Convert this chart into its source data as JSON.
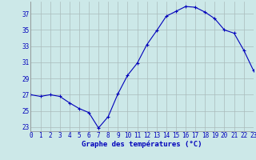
{
  "hours": [
    0,
    1,
    2,
    3,
    4,
    5,
    6,
    7,
    8,
    9,
    10,
    11,
    12,
    13,
    14,
    15,
    16,
    17,
    18,
    19,
    20,
    21,
    22,
    23
  ],
  "temps": [
    27.0,
    26.8,
    27.0,
    26.8,
    26.0,
    25.3,
    24.8,
    22.9,
    24.3,
    27.1,
    29.4,
    30.9,
    33.2,
    34.9,
    36.7,
    37.3,
    37.9,
    37.8,
    37.2,
    36.4,
    35.0,
    34.6,
    32.5,
    30.0
  ],
  "xlim": [
    0,
    23
  ],
  "ylim": [
    22.5,
    38.5
  ],
  "yticks": [
    23,
    25,
    27,
    29,
    31,
    33,
    35,
    37
  ],
  "xtick_labels": [
    "0",
    "1",
    "2",
    "3",
    "4",
    "5",
    "6",
    "7",
    "8",
    "9",
    "10",
    "11",
    "12",
    "13",
    "14",
    "15",
    "16",
    "17",
    "18",
    "19",
    "20",
    "21",
    "22",
    "23"
  ],
  "xlabel": "Graphe des températures (°C)",
  "line_color": "#0000bb",
  "marker": "+",
  "bg_color": "#cce8e8",
  "grid_color": "#aabbbb",
  "axis_label_color": "#0000bb",
  "tick_color": "#0000bb",
  "tick_fontsize": 5.5,
  "xlabel_fontsize": 6.5
}
